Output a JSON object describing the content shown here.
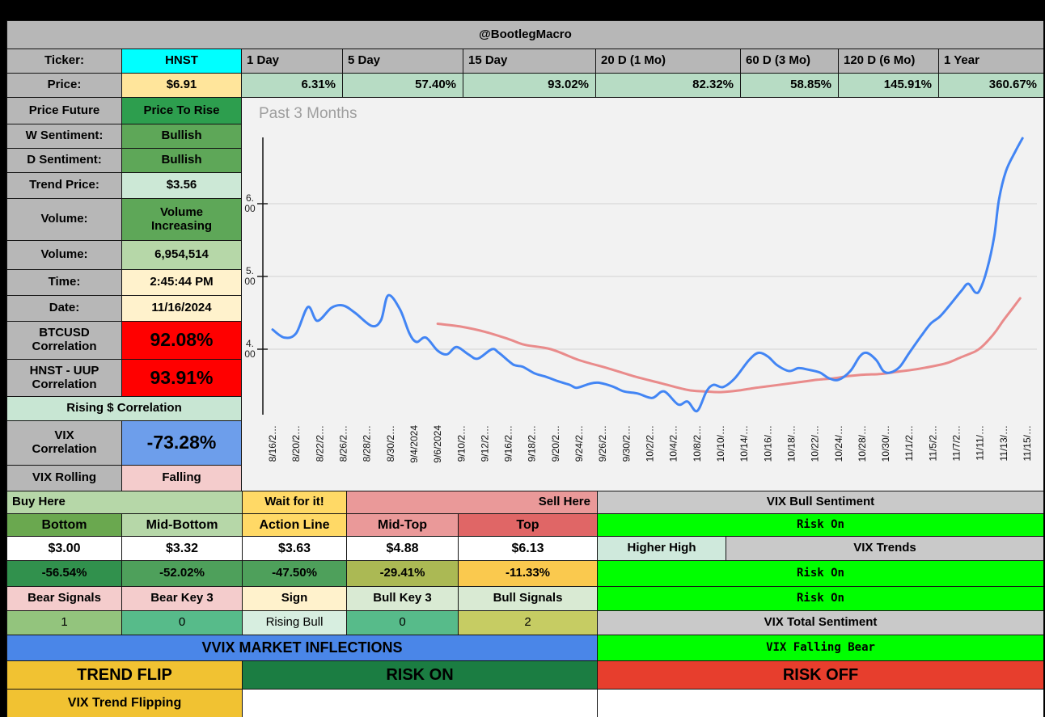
{
  "title_bar": {
    "handle": "@BootlegMacro"
  },
  "summary": {
    "ticker_label": "Ticker:",
    "ticker": "HNST",
    "ticker_bg": "#00ffff",
    "price_label": "Price:",
    "price": "$6.91",
    "price_bg": "#ffe59b",
    "return_bg": "#b7dcc4",
    "header_bg": "#b7b7b7",
    "periods": [
      {
        "label": "1 Day",
        "value": "6.31%"
      },
      {
        "label": "5 Day",
        "value": "57.40%"
      },
      {
        "label": "15 Day",
        "value": "93.02%"
      },
      {
        "label": "20 D (1 Mo)",
        "value": "82.32%"
      },
      {
        "label": "60 D (3 Mo)",
        "value": "58.85%"
      },
      {
        "label": "120 D (6 Mo)",
        "value": "145.91%"
      },
      {
        "label": "1 Year",
        "value": "360.67%"
      }
    ]
  },
  "stats": {
    "label_bg": "#b7b7b7",
    "rows": [
      {
        "label": "Price Future",
        "value": "Price To Rise",
        "bg": "#2d9e4e"
      },
      {
        "label": "W Sentiment:",
        "value": "Bullish",
        "bg": "#5ea758"
      },
      {
        "label": "D Sentiment:",
        "value": "Bullish",
        "bg": "#5ea758"
      },
      {
        "label": "Trend Price:",
        "value": "$3.56",
        "bg": "#cce8d6"
      },
      {
        "label": "Volume:",
        "value": "Volume\nIncreasing",
        "bg": "#5ea758"
      },
      {
        "label": "Volume:",
        "value": "6,954,514",
        "bg": "#b6d7a8"
      },
      {
        "label": "Time:",
        "value": "2:45:44 PM",
        "bg": "#fff2cc"
      },
      {
        "label": "Date:",
        "value": "11/16/2024",
        "bg": "#fff2cc"
      },
      {
        "label": "BTCUSD\nCorrelation",
        "value": "92.08%",
        "bg": "#ff0000",
        "big": true
      },
      {
        "label": "HNST - UUP\nCorrelation",
        "value": "93.91%",
        "bg": "#ff0000",
        "big": true
      },
      {
        "merged": true,
        "label": "Rising $ Correlation",
        "bg": "#c8e6d3"
      },
      {
        "label": "VIX\nCorrelation",
        "value": "-73.28%",
        "bg": "#6d9eeb",
        "big": true
      },
      {
        "label": "VIX Rolling",
        "value": "Falling",
        "bg": "#f4cccc"
      }
    ]
  },
  "chart_data": {
    "type": "line",
    "title": "Past 3 Months",
    "background": "#f2f2f2",
    "grid": true,
    "xlabel": "",
    "ylabel": "",
    "ylim": [
      3.1,
      7.0
    ],
    "y_ticks": [
      {
        "value": 6,
        "lines": [
          "6.",
          "00"
        ],
        "label": "$6.00"
      },
      {
        "value": 5,
        "lines": [
          "5.",
          "00"
        ],
        "label": "$5.00"
      },
      {
        "value": 4,
        "lines": [
          "4.",
          "00"
        ],
        "label": "$4.00"
      }
    ],
    "x_tick_labels": [
      "8/16/2…",
      "8/20/2…",
      "8/22/2…",
      "8/26/2…",
      "8/28/2…",
      "8/30/2…",
      "9/4/2024",
      "9/6/2024",
      "9/10/2…",
      "9/12/2…",
      "9/16/2…",
      "9/18/2…",
      "9/20/2…",
      "9/24/2…",
      "9/26/2…",
      "9/30/2…",
      "10/2/2…",
      "10/4/2…",
      "10/8/2…",
      "10/10/…",
      "10/14/…",
      "10/16/…",
      "10/18/…",
      "10/22/…",
      "10/24/…",
      "10/28/…",
      "10/30/…",
      "11/1/2…",
      "11/5/2…",
      "11/7/2…",
      "11/11/…",
      "11/13/…",
      "11/15/…"
    ],
    "x_unit": "fractional index into x_tick_labels",
    "series": [
      {
        "name": "price",
        "color": "#4285f4",
        "points": [
          [
            0,
            4.27
          ],
          [
            0.5,
            4.16
          ],
          [
            1,
            4.22
          ],
          [
            1.5,
            4.58
          ],
          [
            1.9,
            4.39
          ],
          [
            2.5,
            4.57
          ],
          [
            3,
            4.6
          ],
          [
            3.5,
            4.5
          ],
          [
            4.2,
            4.32
          ],
          [
            4.6,
            4.4
          ],
          [
            4.9,
            4.74
          ],
          [
            5.4,
            4.55
          ],
          [
            5.8,
            4.22
          ],
          [
            6.1,
            4.1
          ],
          [
            6.5,
            4.16
          ],
          [
            7,
            3.98
          ],
          [
            7.4,
            3.93
          ],
          [
            7.8,
            4.03
          ],
          [
            8.3,
            3.93
          ],
          [
            8.7,
            3.87
          ],
          [
            9.3,
            4.0
          ],
          [
            9.6,
            3.95
          ],
          [
            10.2,
            3.79
          ],
          [
            10.6,
            3.76
          ],
          [
            11.1,
            3.67
          ],
          [
            11.6,
            3.62
          ],
          [
            12.1,
            3.56
          ],
          [
            12.6,
            3.51
          ],
          [
            12.9,
            3.47
          ],
          [
            13.4,
            3.52
          ],
          [
            13.8,
            3.54
          ],
          [
            14.4,
            3.49
          ],
          [
            14.9,
            3.42
          ],
          [
            15.5,
            3.39
          ],
          [
            16.1,
            3.33
          ],
          [
            16.6,
            3.42
          ],
          [
            17.2,
            3.24
          ],
          [
            17.6,
            3.28
          ],
          [
            18,
            3.15
          ],
          [
            18.4,
            3.42
          ],
          [
            18.7,
            3.51
          ],
          [
            19.1,
            3.48
          ],
          [
            19.6,
            3.6
          ],
          [
            20.2,
            3.85
          ],
          [
            20.6,
            3.95
          ],
          [
            21,
            3.9
          ],
          [
            21.4,
            3.78
          ],
          [
            21.9,
            3.7
          ],
          [
            22.3,
            3.74
          ],
          [
            22.7,
            3.72
          ],
          [
            23.2,
            3.68
          ],
          [
            23.6,
            3.6
          ],
          [
            24,
            3.58
          ],
          [
            24.5,
            3.7
          ],
          [
            24.9,
            3.9
          ],
          [
            25.2,
            3.95
          ],
          [
            25.6,
            3.85
          ],
          [
            25.9,
            3.7
          ],
          [
            26.2,
            3.68
          ],
          [
            26.6,
            3.76
          ],
          [
            27,
            3.95
          ],
          [
            27.5,
            4.18
          ],
          [
            27.9,
            4.35
          ],
          [
            28.3,
            4.45
          ],
          [
            28.7,
            4.6
          ],
          [
            29.2,
            4.8
          ],
          [
            29.5,
            4.9
          ],
          [
            29.8,
            4.78
          ],
          [
            30,
            4.82
          ],
          [
            30.3,
            5.1
          ],
          [
            30.6,
            5.55
          ],
          [
            30.8,
            6.05
          ],
          [
            31.1,
            6.45
          ],
          [
            31.5,
            6.72
          ],
          [
            31.8,
            6.9
          ]
        ]
      },
      {
        "name": "trend",
        "color": "#e98b8b",
        "points": [
          [
            7,
            4.35
          ],
          [
            8,
            4.31
          ],
          [
            9,
            4.24
          ],
          [
            10,
            4.14
          ],
          [
            10.7,
            4.06
          ],
          [
            11.8,
            4.0
          ],
          [
            13,
            3.85
          ],
          [
            14.2,
            3.74
          ],
          [
            15.3,
            3.63
          ],
          [
            16.5,
            3.53
          ],
          [
            17.6,
            3.44
          ],
          [
            18.3,
            3.42
          ],
          [
            19,
            3.41
          ],
          [
            19.7,
            3.43
          ],
          [
            20.3,
            3.46
          ],
          [
            21,
            3.49
          ],
          [
            21.7,
            3.52
          ],
          [
            22.4,
            3.55
          ],
          [
            23.1,
            3.58
          ],
          [
            23.8,
            3.6
          ],
          [
            24.4,
            3.63
          ],
          [
            25.1,
            3.65
          ],
          [
            25.8,
            3.66
          ],
          [
            26.5,
            3.69
          ],
          [
            27.2,
            3.72
          ],
          [
            27.9,
            3.76
          ],
          [
            28.6,
            3.81
          ],
          [
            29.2,
            3.89
          ],
          [
            29.8,
            3.97
          ],
          [
            30.1,
            4.04
          ],
          [
            30.4,
            4.14
          ],
          [
            30.7,
            4.26
          ],
          [
            31,
            4.4
          ],
          [
            31.4,
            4.57
          ],
          [
            31.7,
            4.7
          ]
        ]
      }
    ]
  },
  "levels": {
    "zones": [
      {
        "label": "Buy Here",
        "bg": "#b6d7a8"
      },
      {
        "label": "Wait for it!",
        "bg": "#ffd966"
      },
      {
        "label": "Sell Here",
        "bg": "#ea9999"
      }
    ],
    "names": [
      {
        "label": "Bottom",
        "bg": "#6aa84f"
      },
      {
        "label": "Mid-Bottom",
        "bg": "#b6d7a8"
      },
      {
        "label": "Action Line",
        "bg": "#ffd966"
      },
      {
        "label": "Mid-Top",
        "bg": "#ea9999"
      },
      {
        "label": "Top",
        "bg": "#e06666"
      }
    ],
    "prices": [
      "$3.00",
      "$3.32",
      "$3.63",
      "$4.88",
      "$6.13"
    ],
    "percents": [
      {
        "label": "-56.54%",
        "bg": "#31914d"
      },
      {
        "label": "-52.02%",
        "bg": "#4ea05b"
      },
      {
        "label": "-47.50%",
        "bg": "#4ea05b"
      },
      {
        "label": "-29.41%",
        "bg": "#abb954"
      },
      {
        "label": "-11.33%",
        "bg": "#fac94e"
      }
    ],
    "signal_headers": [
      {
        "label": "Bear Signals",
        "bg": "#f4cccc"
      },
      {
        "label": "Bear Key 3",
        "bg": "#f4cccc"
      },
      {
        "label": "Sign",
        "bg": "#fff2cc"
      },
      {
        "label": "Bull Key 3",
        "bg": "#d9ead3"
      },
      {
        "label": "Bull Signals",
        "bg": "#d9ead3"
      }
    ],
    "signal_values": [
      {
        "label": "1",
        "bg": "#93c47d"
      },
      {
        "label": "0",
        "bg": "#57bb8a"
      },
      {
        "label": "Rising Bull",
        "bg": "#d7eee0"
      },
      {
        "label": "0",
        "bg": "#57bb8a"
      },
      {
        "label": "2",
        "bg": "#c6cc63"
      }
    ],
    "vvix_banner": {
      "label": "VVIX MARKET INFLECTIONS",
      "bg": "#4a86e8"
    },
    "trend_flip": {
      "label": "TREND FLIP",
      "bg": "#f1c232"
    },
    "risk_on": {
      "label": "RISK ON",
      "bg": "#1b7d42"
    },
    "vix_trend_flipping": {
      "label": "VIX Trend Flipping",
      "bg": "#f1c232"
    }
  },
  "vix_panel": {
    "gray": "#c9c9c9",
    "green": "#00ff00",
    "bull_header": "VIX Bull Sentiment",
    "bull_value": "Risk On",
    "higher_high": {
      "label": "Higher High",
      "bg": "#cfe9dc"
    },
    "trends_header": "VIX Trends",
    "trend_value_1": "Risk On",
    "trend_value_2": "Risk On",
    "total_header": "VIX Total Sentiment",
    "total_value": "VIX Falling Bear",
    "risk_off": {
      "label": "RISK OFF",
      "bg": "#e73e2d"
    }
  }
}
